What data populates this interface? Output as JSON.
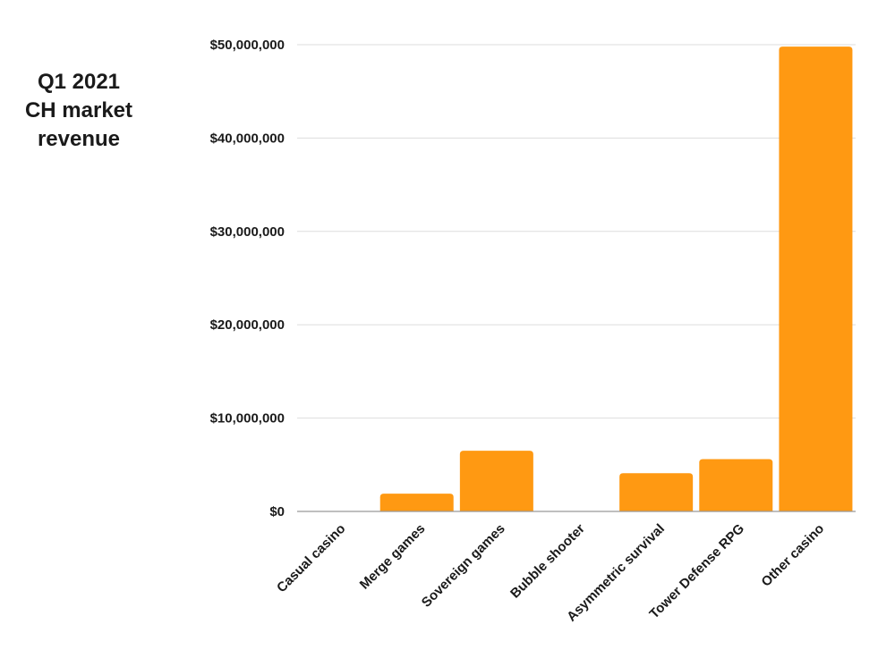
{
  "chart_data": {
    "type": "bar",
    "title_lines": [
      "Q1 2021",
      "CH market",
      "revenue"
    ],
    "categories": [
      "Casual casino",
      "Merge games",
      "Sovereign games",
      "Bubble shooter",
      "Asymmetric survival",
      "Tower Defense RPG",
      "Other casino"
    ],
    "values": [
      0,
      1900000,
      6500000,
      0,
      4100000,
      5600000,
      49800000
    ],
    "ylim": [
      0,
      50000000
    ],
    "yticks": [
      0,
      10000000,
      20000000,
      30000000,
      40000000,
      50000000
    ],
    "ytick_labels": [
      "$0",
      "$10,000,000",
      "$20,000,000",
      "$30,000,000",
      "$40,000,000",
      "$50,000,000"
    ],
    "grid": true,
    "bar_color": "#FF9912",
    "gridline_color": "#dddddd",
    "axis_color": "#999999"
  }
}
